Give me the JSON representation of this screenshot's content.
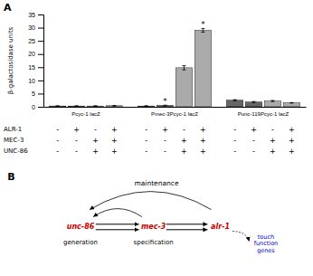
{
  "chart_data": [
    {
      "type": "bar",
      "title": "A",
      "ylabel": "β-galactosidase units",
      "categories": [
        "Pcyc-1 lacZ",
        "Pmec-3Pcyc-1 lacZ",
        "Punc-119Pcyc-1 lacZ"
      ],
      "series": [
        {
          "color": "#666666",
          "values": [
            0.3,
            0.3,
            2.5
          ],
          "errors": [
            0.1,
            0.1,
            0.2
          ]
        },
        {
          "color": "#666666",
          "values": [
            0.3,
            0.5,
            1.8
          ],
          "errors": [
            0.1,
            0.1,
            0.2
          ],
          "annotations": [
            null,
            "*",
            null
          ]
        },
        {
          "color": "#aaaaaa",
          "values": [
            0.3,
            14.8,
            2.2
          ],
          "errors": [
            0.1,
            0.8,
            0.2
          ]
        },
        {
          "color": "#aaaaaa",
          "values": [
            0.4,
            29.0,
            1.5
          ],
          "errors": [
            0.1,
            0.7,
            0.1
          ],
          "annotations": [
            null,
            "*",
            null
          ]
        }
      ],
      "ylim": [
        0,
        35
      ],
      "yticks": [
        0,
        5,
        10,
        15,
        20,
        25,
        30,
        35
      ],
      "grid": false,
      "table": {
        "row_labels": [
          "ALR-1",
          "MEC-3",
          "UNC-86"
        ],
        "cells": [
          [
            "-",
            "+",
            "-",
            "+",
            "-",
            "+",
            "-",
            "+",
            "-",
            "+",
            "-",
            "+"
          ],
          [
            "-",
            "-",
            "+",
            "+",
            "-",
            "-",
            "+",
            "+",
            "-",
            "-",
            "+",
            "+"
          ],
          [
            "-",
            "-",
            "+",
            "+",
            "-",
            "-",
            "+",
            "+",
            "-",
            "-",
            "+",
            "+"
          ]
        ]
      }
    },
    {
      "type": "diagram",
      "title": "B",
      "nodes": [
        {
          "name": "unc-86",
          "label": "generation",
          "color": "#cc0000"
        },
        {
          "name": "mec-3",
          "label": "specification",
          "color": "#cc0000"
        },
        {
          "name": "alr-1",
          "color": "#cc0000"
        }
      ],
      "target": {
        "name": "touch\nfunction\ngenes",
        "color": "#0000cc"
      },
      "arc_label": "maintenance"
    }
  ]
}
